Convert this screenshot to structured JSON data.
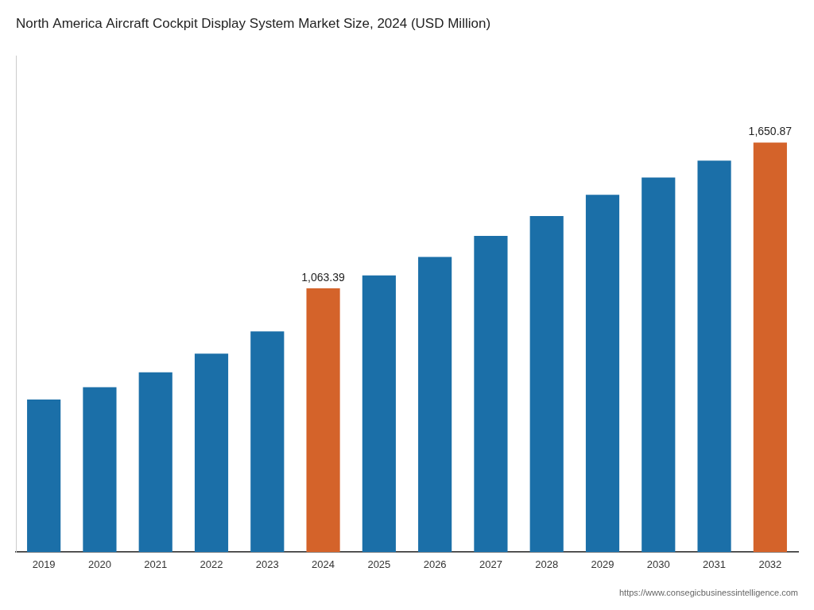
{
  "chart_data": {
    "type": "bar",
    "title": "North America Aircraft Cockpit Display System Market Size, 2024 (USD Million)",
    "categories": [
      "2019",
      "2020",
      "2021",
      "2022",
      "2023",
      "2024",
      "2025",
      "2026",
      "2027",
      "2028",
      "2029",
      "2030",
      "2031",
      "2032"
    ],
    "values": [
      615,
      665,
      725,
      800,
      890,
      1063.39,
      1115,
      1190,
      1275,
      1355,
      1440,
      1510,
      1578,
      1650.87
    ],
    "colors": [
      "#1b6fa8",
      "#1b6fa8",
      "#1b6fa8",
      "#1b6fa8",
      "#1b6fa8",
      "#d4632a",
      "#1b6fa8",
      "#1b6fa8",
      "#1b6fa8",
      "#1b6fa8",
      "#1b6fa8",
      "#1b6fa8",
      "#1b6fa8",
      "#d4632a"
    ],
    "annotations": [
      {
        "text": "1,063.39",
        "x": "2024",
        "y": 1063.39
      },
      {
        "text": "1,650.87",
        "x": "2032",
        "y": 1650.87
      }
    ],
    "source": "https://www.consegicbusinessintelligence.com",
    "ylim": [
      0,
      2000
    ],
    "grid": false,
    "tick_labels": "x"
  }
}
